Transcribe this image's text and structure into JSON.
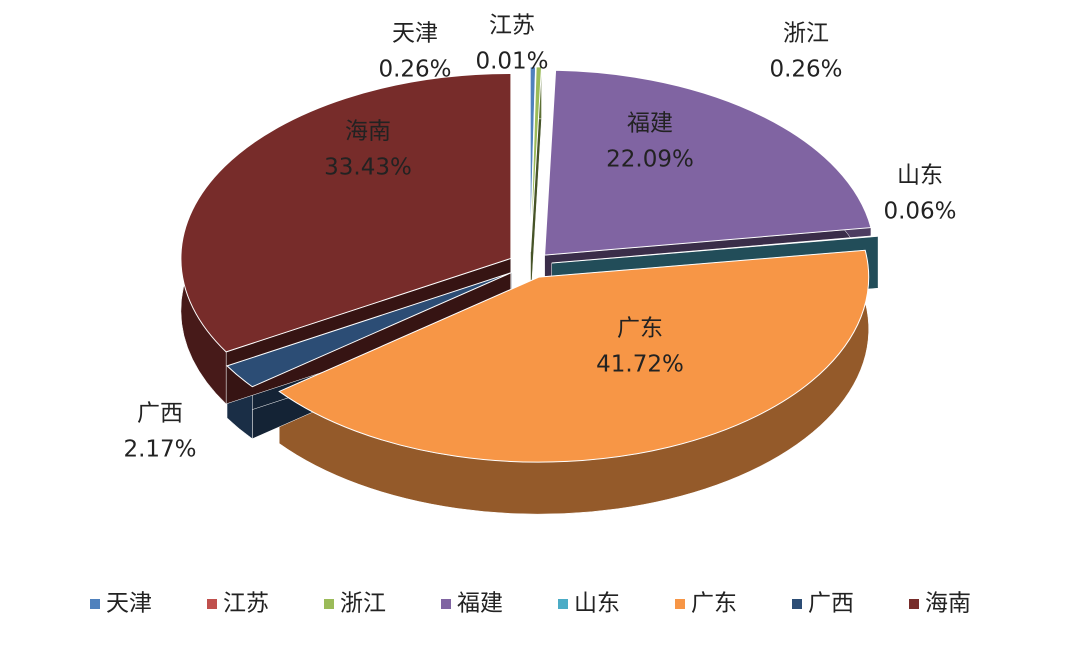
{
  "chart_data": {
    "type": "pie",
    "categories": [
      "天津",
      "江苏",
      "浙江",
      "福建",
      "山东",
      "广东",
      "广西",
      "海南"
    ],
    "values": [
      0.26,
      0.01,
      0.26,
      22.09,
      0.06,
      41.72,
      2.17,
      33.43
    ],
    "value_labels": [
      "0.26%",
      "0.01%",
      "0.26%",
      "22.09%",
      "0.06%",
      "41.72%",
      "2.17%",
      "33.43%"
    ],
    "colors": [
      "#4f81bd",
      "#c0504d",
      "#9bbb59",
      "#8064a2",
      "#4bacc6",
      "#f79646",
      "#2c4d75",
      "#772c2a"
    ],
    "legend": "bottom"
  }
}
